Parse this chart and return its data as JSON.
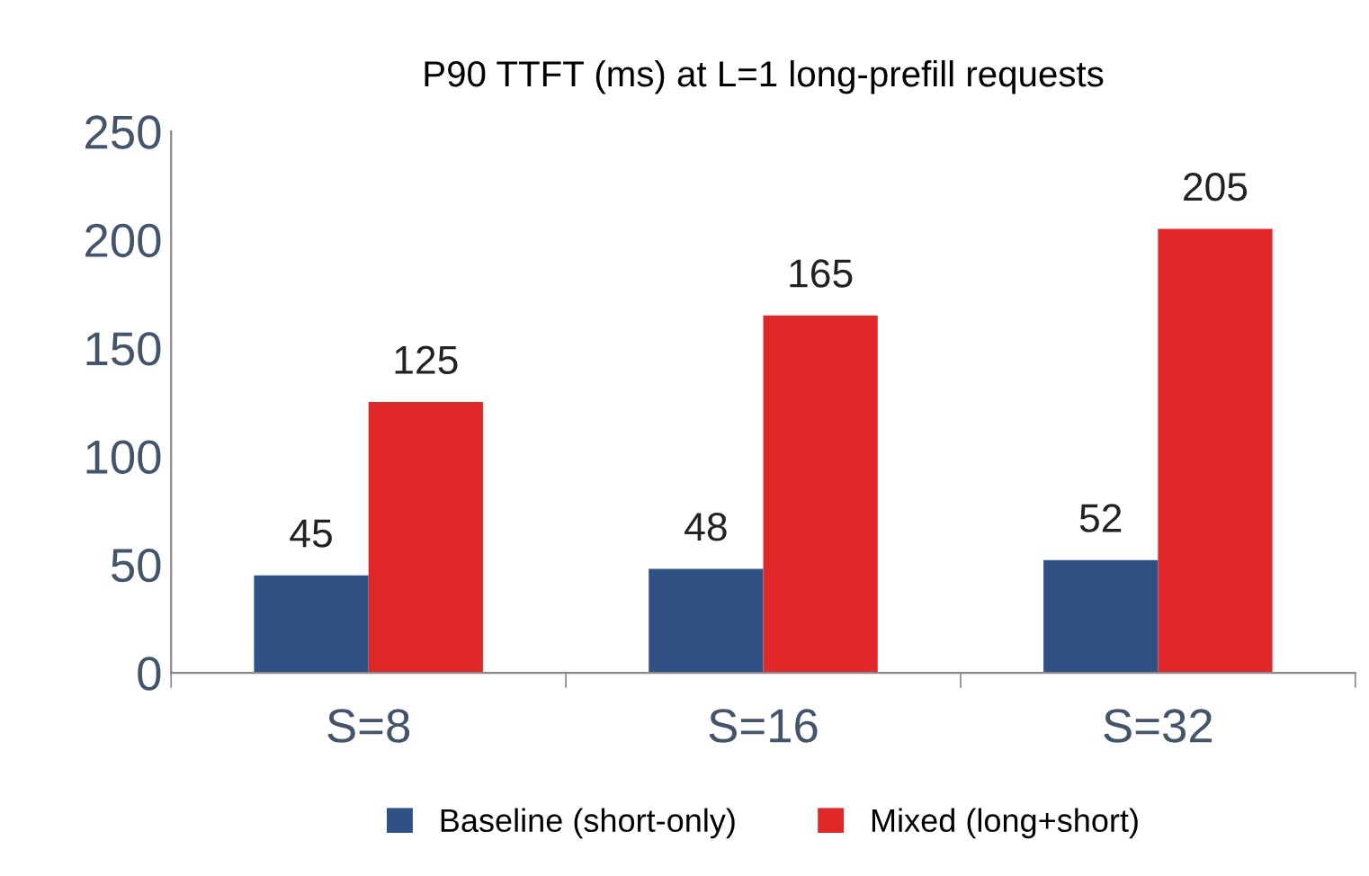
{
  "chart_data": {
    "type": "bar",
    "title": "P90 TTFT (ms) at L=1 long-prefill requests",
    "categories": [
      "S=8",
      "S=16",
      "S=32"
    ],
    "series": [
      {
        "name": "Baseline (short-only)",
        "color": "#2f5184",
        "values": [
          45,
          48,
          52
        ]
      },
      {
        "name": "Mixed (long+short)",
        "color": "#e02828",
        "values": [
          125,
          165,
          205
        ]
      }
    ],
    "ylim": [
      0,
      250
    ],
    "yticks": [
      0,
      50,
      100,
      150,
      200,
      250
    ],
    "grid": false,
    "legend": "bottom",
    "data_labels": true
  }
}
